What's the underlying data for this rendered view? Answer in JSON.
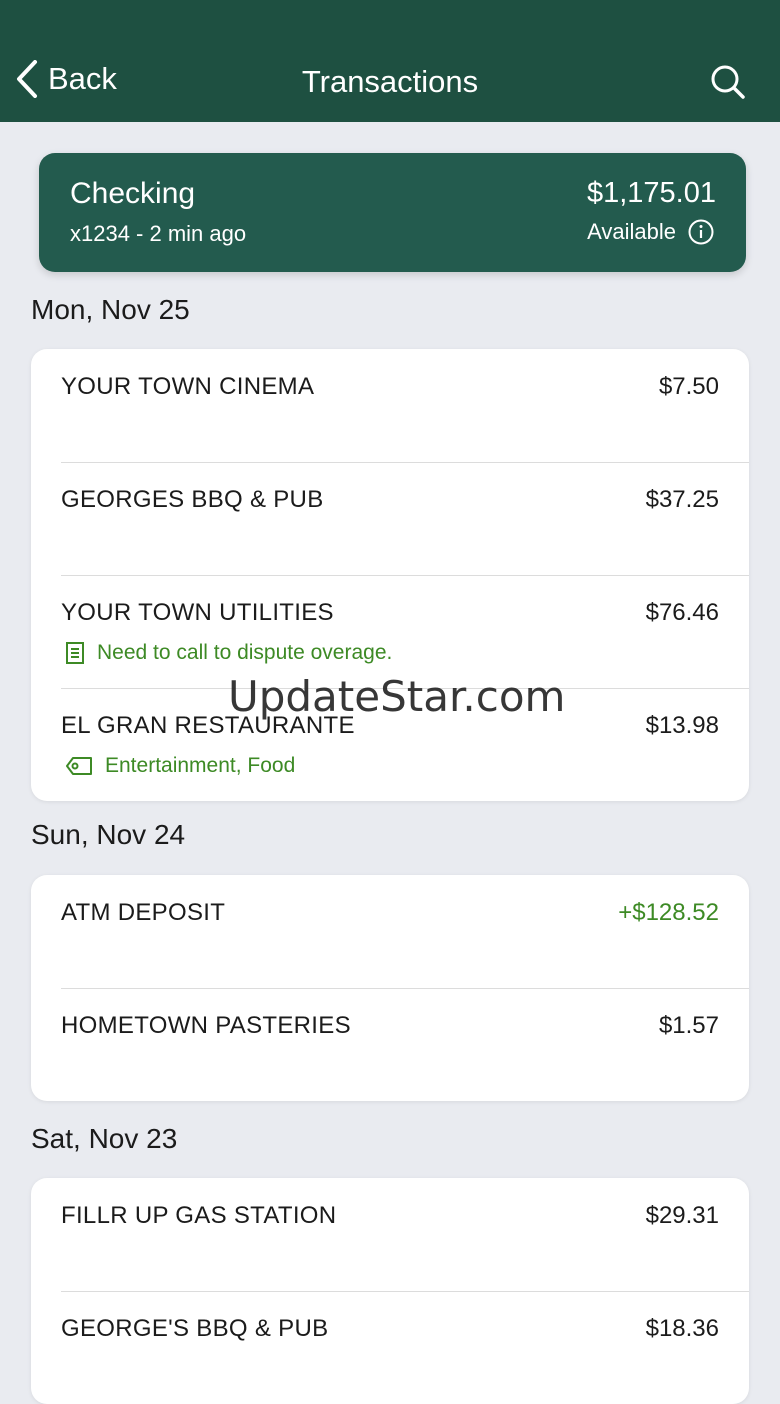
{
  "header": {
    "back_label": "Back",
    "title": "Transactions"
  },
  "account": {
    "name": "Checking",
    "subtitle": "x1234 - 2 min ago",
    "balance": "$1,175.01",
    "balance_label": "Available"
  },
  "groups": [
    {
      "date": "Mon, Nov 25",
      "items": [
        {
          "merchant": "YOUR TOWN CINEMA",
          "amount": "$7.50"
        },
        {
          "merchant": "GEORGES BBQ & PUB",
          "amount": "$37.25"
        },
        {
          "merchant": "YOUR TOWN UTILITIES",
          "amount": "$76.46",
          "note": "Need to call to dispute overage.",
          "note_icon": "note-icon"
        },
        {
          "merchant": "EL GRAN RESTAURANTE",
          "amount": "$13.98",
          "tags": "Entertainment, Food",
          "tags_icon": "tag-icon"
        }
      ]
    },
    {
      "date": "Sun, Nov 24",
      "items": [
        {
          "merchant": "ATM DEPOSIT",
          "amount": "+$128.52"
        },
        {
          "merchant": "HOMETOWN PASTERIES",
          "amount": "$1.57"
        }
      ]
    },
    {
      "date": "Sat, Nov 23",
      "items": [
        {
          "merchant": "FILLR UP GAS STATION",
          "amount": "$29.31"
        },
        {
          "merchant": "GEORGE'S BBQ & PUB",
          "amount": "$18.36"
        }
      ]
    }
  ],
  "watermark": "UpdateStar.com",
  "colors": {
    "header": "#1e5041",
    "account_card": "#235b4e",
    "positive": "#3d8a25",
    "background": "#e9ebf0"
  }
}
